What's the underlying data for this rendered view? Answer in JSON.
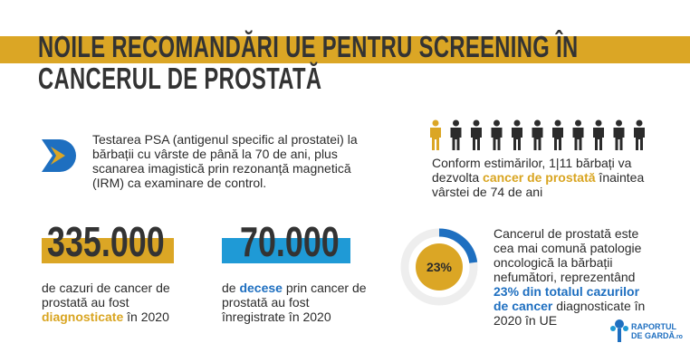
{
  "header": {
    "title_line1": "NOILE RECOMANDĂRI UE PENTRU SCREENING ÎN",
    "title_line2": "CANCERUL DE PROSTATĂ"
  },
  "intro": {
    "text": "Testarea PSA (antigenul specific al prostatei) la bărbații cu vârste de până la 70 de ani, plus scanarea imagistică prin rezonanță magnetică (IRM) ca examinare de control."
  },
  "risk": {
    "icons_total": 11,
    "icons_highlighted": 1,
    "segments": [
      "Conform estimărilor, 1|11 bărbați va dezvolta ",
      "cancer de prostată",
      " înaintea vârstei de 74 de ani"
    ]
  },
  "cases": {
    "number": "335.000",
    "segments": [
      "de cazuri de cancer de prostată au fost ",
      "diagnosticate",
      " în 2020"
    ]
  },
  "deaths": {
    "number": "70.000",
    "segments": [
      "de ",
      "decese",
      " prin cancer de prostată au fost înregistrate în 2020"
    ]
  },
  "share": {
    "donut": {
      "value": 23,
      "label": "23%"
    },
    "segments": [
      "Cancerul de prostată este cea mai comună patologie oncologică la bărbații nefumători, reprezentând ",
      "23% din totalul cazurilor de cancer",
      " diagnosticate în 2020 în UE"
    ]
  },
  "logo": {
    "line1": "RAPORTUL",
    "line2": "DE GARDĂ",
    "suffix": ".ro"
  }
}
